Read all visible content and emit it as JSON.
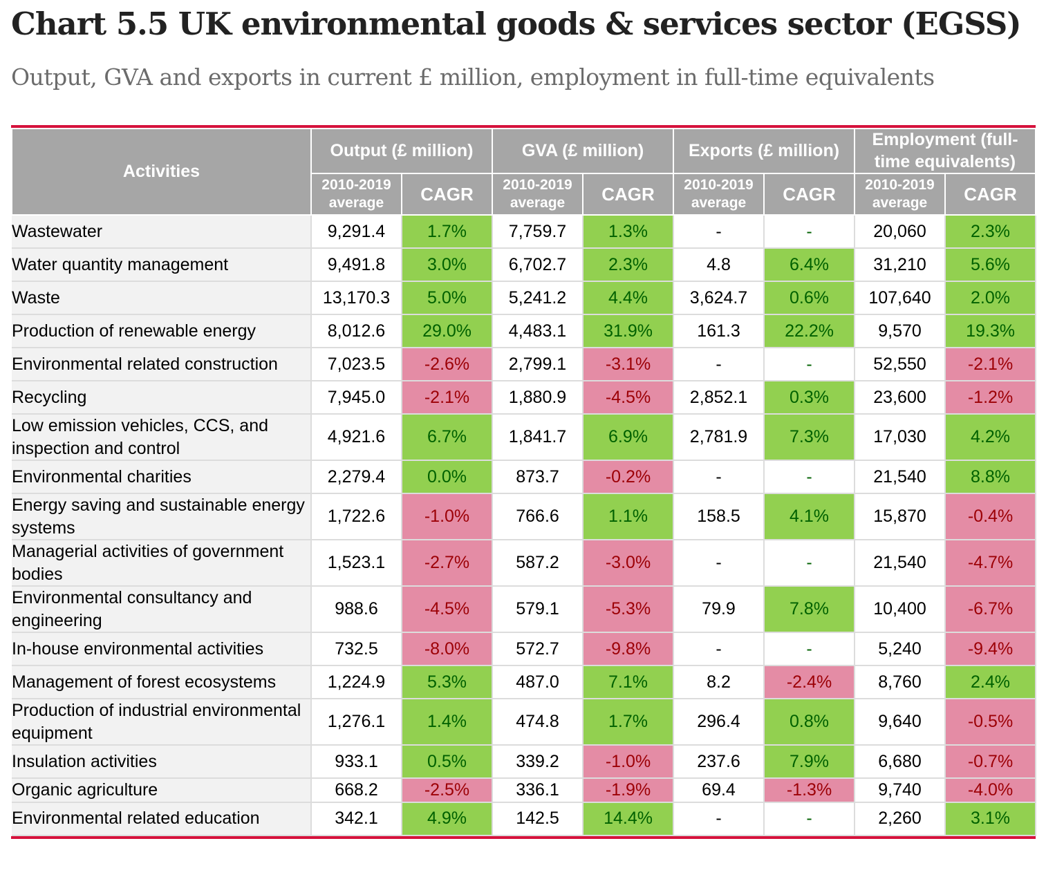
{
  "title": "Chart 5.5  UK environmental goods & services sector (EGSS)",
  "subtitle": "Output, GVA and exports in current £ million, employment in full-time equivalents",
  "colors": {
    "accent": "#d6123c",
    "header": "#a6a6a6",
    "positive_bg": "#92d050",
    "negative_bg": "#e48ca5"
  },
  "chart_data": {
    "type": "table",
    "headers": {
      "activities": "Activities",
      "groups": [
        "Output (£ million)",
        "GVA (£ million)",
        "Exports (£ million)",
        "Employment (full-time equivalents)"
      ],
      "sub": [
        "2010-2019 average",
        "CAGR"
      ]
    },
    "rows": [
      {
        "activity": "Wastewater",
        "values": [
          "9,291.4",
          "1.7%",
          "7,759.7",
          "1.3%",
          "-",
          "-",
          "20,060",
          "2.3%"
        ]
      },
      {
        "activity": "Water quantity management",
        "values": [
          "9,491.8",
          "3.0%",
          "6,702.7",
          "2.3%",
          "4.8",
          "6.4%",
          "31,210",
          "5.6%"
        ]
      },
      {
        "activity": "Waste",
        "values": [
          "13,170.3",
          "5.0%",
          "5,241.2",
          "4.4%",
          "3,624.7",
          "0.6%",
          "107,640",
          "2.0%"
        ]
      },
      {
        "activity": "Production of renewable energy",
        "values": [
          "8,012.6",
          "29.0%",
          "4,483.1",
          "31.9%",
          "161.3",
          "22.2%",
          "9,570",
          "19.3%"
        ]
      },
      {
        "activity": "Environmental related construction",
        "values": [
          "7,023.5",
          "-2.6%",
          "2,799.1",
          "-3.1%",
          "-",
          "-",
          "52,550",
          "-2.1%"
        ]
      },
      {
        "activity": "Recycling",
        "values": [
          "7,945.0",
          "-2.1%",
          "1,880.9",
          "-4.5%",
          "2,852.1",
          "0.3%",
          "23,600",
          "-1.2%"
        ]
      },
      {
        "activity": "Low emission vehicles, CCS, and inspection and control",
        "values": [
          "4,921.6",
          "6.7%",
          "1,841.7",
          "6.9%",
          "2,781.9",
          "7.3%",
          "17,030",
          "4.2%"
        ]
      },
      {
        "activity": "Environmental charities",
        "values": [
          "2,279.4",
          "0.0%",
          "873.7",
          "-0.2%",
          "-",
          "-",
          "21,540",
          "8.8%"
        ]
      },
      {
        "activity": "Energy saving and sustainable energy systems",
        "values": [
          "1,722.6",
          "-1.0%",
          "766.6",
          "1.1%",
          "158.5",
          "4.1%",
          "15,870",
          "-0.4%"
        ]
      },
      {
        "activity": "Managerial activities of government bodies",
        "values": [
          "1,523.1",
          "-2.7%",
          "587.2",
          "-3.0%",
          "-",
          "-",
          "21,540",
          "-4.7%"
        ]
      },
      {
        "activity": "Environmental consultancy and engineering",
        "values": [
          "988.6",
          "-4.5%",
          "579.1",
          "-5.3%",
          "79.9",
          "7.8%",
          "10,400",
          "-6.7%"
        ]
      },
      {
        "activity": "In-house environmental activities",
        "values": [
          "732.5",
          "-8.0%",
          "572.7",
          "-9.8%",
          "-",
          "-",
          "5,240",
          "-9.4%"
        ]
      },
      {
        "activity": "Management of forest ecosystems",
        "values": [
          "1,224.9",
          "5.3%",
          "487.0",
          "7.1%",
          "8.2",
          "-2.4%",
          "8,760",
          "2.4%"
        ]
      },
      {
        "activity": "Production of industrial environmental equipment",
        "values": [
          "1,276.1",
          "1.4%",
          "474.8",
          "1.7%",
          "296.4",
          "0.8%",
          "9,640",
          "-0.5%"
        ]
      },
      {
        "activity": "Insulation activities",
        "values": [
          "933.1",
          "0.5%",
          "339.2",
          "-1.0%",
          "237.6",
          "7.9%",
          "6,680",
          "-0.7%"
        ]
      },
      {
        "activity": "Organic agriculture",
        "values": [
          "668.2",
          "-2.5%",
          "336.1",
          "-1.9%",
          "69.4",
          "-1.3%",
          "9,740",
          "-4.0%"
        ]
      },
      {
        "activity": "Environmental related education",
        "values": [
          "342.1",
          "4.9%",
          "142.5",
          "14.4%",
          "-",
          "-",
          "2,260",
          "3.1%"
        ]
      }
    ]
  }
}
